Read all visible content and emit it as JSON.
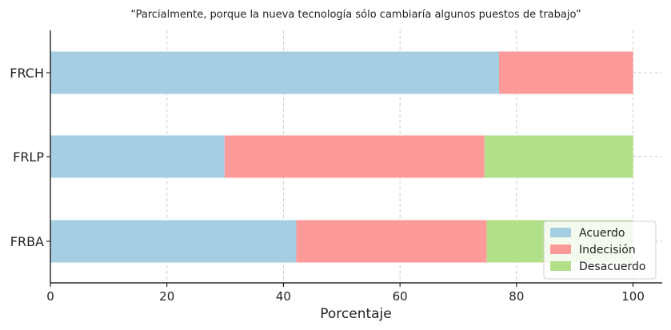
{
  "chart_data": {
    "type": "bar",
    "orientation": "horizontal",
    "stacked": true,
    "title": "“Parcialmente, porque la nueva tecnología sólo cambiaría algunos puestos de trabajo”",
    "xlabel": "Porcentaje",
    "ylabel": "",
    "xlim": [
      0,
      105
    ],
    "xticks": [
      0,
      20,
      40,
      60,
      80,
      100
    ],
    "grid": true,
    "legend_position": "lower-right",
    "categories": [
      "FRCH",
      "FRLP",
      "FRBA"
    ],
    "series": [
      {
        "name": "Acuerdo",
        "color": "#a6cee3",
        "values": [
          77.0,
          29.9,
          42.2
        ]
      },
      {
        "name": "Indecisión",
        "color": "#fb9a99",
        "values": [
          23.0,
          44.6,
          32.7
        ]
      },
      {
        "name": "Desacuerdo",
        "color": "#b2df8a",
        "values": [
          0.0,
          25.5,
          25.1
        ]
      }
    ]
  }
}
